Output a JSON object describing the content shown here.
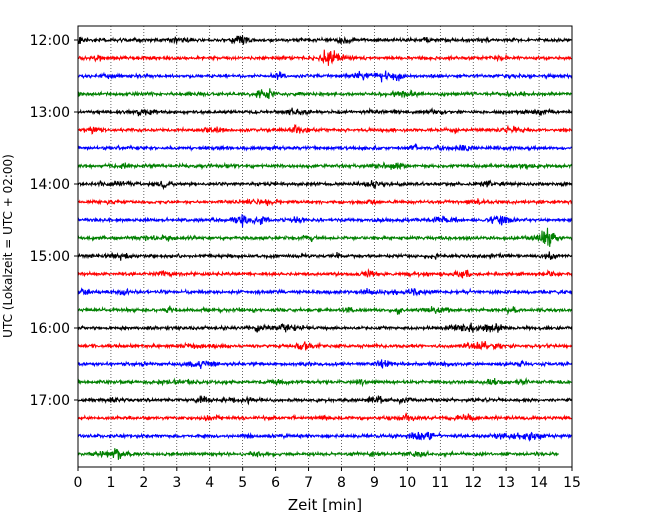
{
  "chart_data": {
    "type": "line",
    "title": "",
    "xlabel": "Zeit  [min]",
    "ylabel": "UTC (Lokalzeit = UTC + 02:00)",
    "xlim": [
      0,
      15
    ],
    "x_ticks": [
      0,
      1,
      2,
      3,
      4,
      5,
      6,
      7,
      8,
      9,
      10,
      11,
      12,
      13,
      14,
      15
    ],
    "x_grid": true,
    "y_tick_labels": [
      "12:00",
      "13:00",
      "14:00",
      "15:00",
      "16:00",
      "17:00"
    ],
    "trace_colors": [
      "#000000",
      "#ff0000",
      "#0000ff",
      "#008000"
    ],
    "series": [
      {
        "start": "12:00",
        "end_min": 15,
        "color": "#000000"
      },
      {
        "start": "12:15",
        "end_min": 15,
        "color": "#ff0000"
      },
      {
        "start": "12:30",
        "end_min": 15,
        "color": "#0000ff"
      },
      {
        "start": "12:45",
        "end_min": 15,
        "color": "#008000"
      },
      {
        "start": "13:00",
        "end_min": 15,
        "color": "#000000"
      },
      {
        "start": "13:15",
        "end_min": 15,
        "color": "#ff0000"
      },
      {
        "start": "13:30",
        "end_min": 15,
        "color": "#0000ff"
      },
      {
        "start": "13:45",
        "end_min": 15,
        "color": "#008000"
      },
      {
        "start": "14:00",
        "end_min": 15,
        "color": "#000000"
      },
      {
        "start": "14:15",
        "end_min": 15,
        "color": "#ff0000"
      },
      {
        "start": "14:30",
        "end_min": 15,
        "color": "#0000ff"
      },
      {
        "start": "14:45",
        "end_min": 15,
        "color": "#008000"
      },
      {
        "start": "15:00",
        "end_min": 15,
        "color": "#000000"
      },
      {
        "start": "15:15",
        "end_min": 15,
        "color": "#ff0000"
      },
      {
        "start": "15:30",
        "end_min": 15,
        "color": "#0000ff"
      },
      {
        "start": "15:45",
        "end_min": 15,
        "color": "#008000"
      },
      {
        "start": "16:00",
        "end_min": 15,
        "color": "#000000"
      },
      {
        "start": "16:15",
        "end_min": 15,
        "color": "#ff0000"
      },
      {
        "start": "16:30",
        "end_min": 15,
        "color": "#0000ff"
      },
      {
        "start": "16:45",
        "end_min": 15,
        "color": "#008000"
      },
      {
        "start": "17:00",
        "end_min": 15,
        "color": "#000000"
      },
      {
        "start": "17:15",
        "end_min": 15,
        "color": "#ff0000"
      },
      {
        "start": "17:30",
        "end_min": 15,
        "color": "#0000ff"
      },
      {
        "start": "17:45",
        "end_min": 14.6,
        "color": "#008000"
      }
    ]
  }
}
